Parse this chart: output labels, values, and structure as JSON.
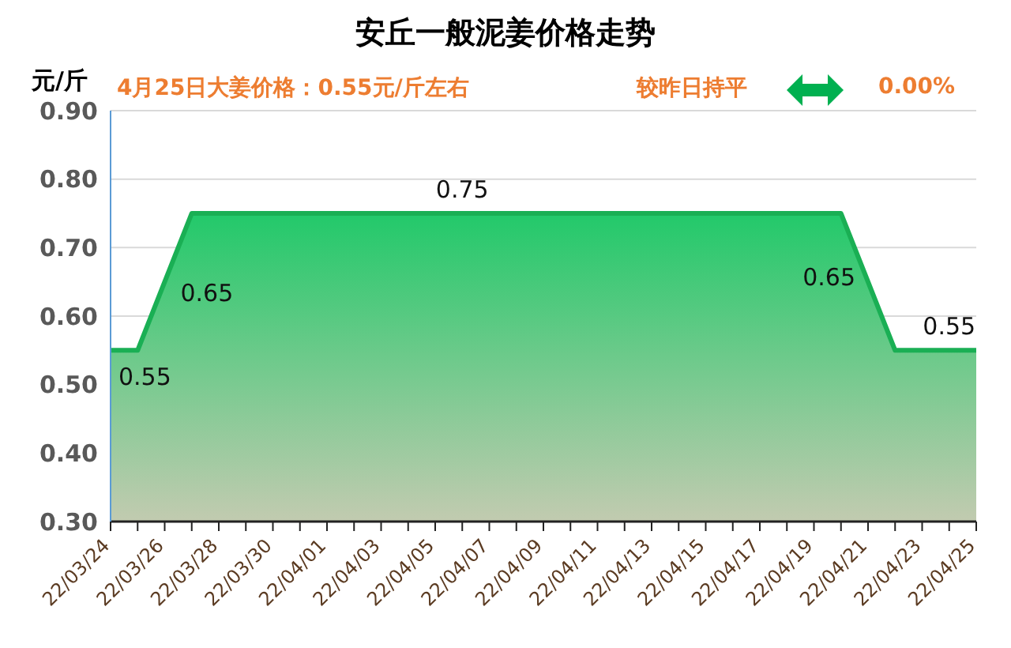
{
  "chart_data": {
    "type": "area",
    "title": "安丘一般泥姜价格走势",
    "ylabel": "元/斤",
    "annotations": [
      "4月25日大姜价格：0.55元/斤左右",
      "较昨日持平",
      "0.00%"
    ],
    "categories": [
      "22/03/24",
      null,
      "22/03/26",
      null,
      "22/03/28",
      null,
      "22/03/30",
      null,
      "22/04/01",
      null,
      "22/04/03",
      null,
      "22/04/05",
      null,
      "22/04/07",
      null,
      "22/04/09",
      null,
      "22/04/11",
      null,
      "22/04/13",
      null,
      "22/04/15",
      null,
      "22/04/17",
      null,
      "22/04/19",
      null,
      "22/04/21",
      null,
      "22/04/23",
      null,
      "22/04/25"
    ],
    "series": [
      {
        "color": "#1aaf54",
        "values": [
          0.55,
          0.55,
          0.65,
          0.75,
          0.75,
          0.75,
          0.75,
          0.75,
          0.75,
          0.75,
          0.75,
          0.75,
          0.75,
          0.75,
          0.75,
          0.75,
          0.75,
          0.75,
          0.75,
          0.75,
          0.75,
          0.75,
          0.75,
          0.75,
          0.75,
          0.75,
          0.75,
          0.75,
          0.65,
          0.55,
          0.55,
          0.55,
          0.55
        ],
        "value_labels": [
          "0.55",
          null,
          "0.65",
          null,
          null,
          null,
          null,
          null,
          null,
          null,
          null,
          null,
          null,
          "0.75",
          null,
          null,
          null,
          null,
          null,
          null,
          null,
          null,
          null,
          null,
          null,
          null,
          null,
          null,
          "0.65",
          null,
          null,
          "0.55",
          null
        ]
      }
    ],
    "ylim": [
      0.3,
      0.9
    ],
    "yticks": [
      {
        "value": 0.3,
        "label": "0.30"
      },
      {
        "value": 0.4,
        "label": "0.40"
      },
      {
        "value": 0.5,
        "label": "0.50"
      },
      {
        "value": 0.6,
        "label": "0.60"
      },
      {
        "value": 0.7,
        "label": "0.70"
      },
      {
        "value": 0.8,
        "label": "0.80"
      },
      {
        "value": 0.9,
        "label": "0.90"
      }
    ],
    "grid": "y",
    "legend": false,
    "marker": "none"
  }
}
